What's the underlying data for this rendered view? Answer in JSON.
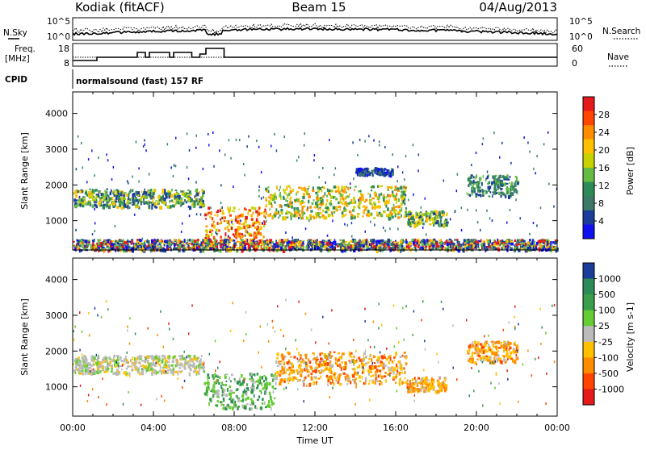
{
  "header": {
    "station": "Kodiak (fitACF)",
    "beam": "Beam 15",
    "date": "04/Aug/2013"
  },
  "nsky_panel": {
    "left_label": "N.Sky",
    "right_label": "N.Search",
    "left_ticks": [
      "10^5",
      "10^0"
    ],
    "right_ticks": [
      "10^5",
      "10^0"
    ]
  },
  "freq_panel": {
    "left_label_1": "Freq.",
    "left_label_2": "[MHz]",
    "left_ticks": [
      "18",
      "8"
    ],
    "right_label": "Nave",
    "right_ticks": [
      "60",
      "0"
    ]
  },
  "cpid_panel": {
    "label": "CPID",
    "text": "normalsound (fast) 157 RF"
  },
  "time_axis": {
    "xlabel": "Time UT",
    "ticks": [
      "00:00",
      "04:00",
      "08:00",
      "12:00",
      "16:00",
      "20:00",
      "00:00"
    ]
  },
  "power_colorbar": {
    "label": "Power [dB]",
    "ticks": [
      "28",
      "24",
      "20",
      "16",
      "12",
      "8",
      "4"
    ],
    "colors": [
      "#e41a1c",
      "#ff4500",
      "#ff8c00",
      "#ffc000",
      "#c8d200",
      "#66bb44",
      "#2e8b57",
      "#3a7a66",
      "#1a3d99",
      "#1010ee"
    ]
  },
  "velocity_colorbar": {
    "label": "Velocity [m s-1]",
    "ticks": [
      "1000",
      "500",
      "100",
      "25",
      "-25",
      "-100",
      "-500",
      "-1000"
    ],
    "colors": [
      "#1a3d99",
      "#2e8b57",
      "#3a9e4a",
      "#66cc33",
      "#bbbbbb",
      "#ffc000",
      "#ff8c00",
      "#ff4500",
      "#e41a1c"
    ]
  },
  "chart_data": [
    {
      "type": "heatmap",
      "title": "",
      "xlabel": "Time UT",
      "ylabel": "Slant Range [km]",
      "xlim": [
        0,
        24
      ],
      "ylim": [
        180,
        4600
      ],
      "yticks": [
        "1000",
        "2000",
        "3000",
        "4000"
      ],
      "colorbar": "Power [dB]",
      "scatter_regions": [
        {
          "t_start": 0.0,
          "t_end": 6.5,
          "range_km": [
            1400,
            1900
          ],
          "level": "mid"
        },
        {
          "t_start": 6.5,
          "t_end": 9.5,
          "range_km": [
            300,
            1400
          ],
          "level": "high"
        },
        {
          "t_start": 9.5,
          "t_end": 16.5,
          "range_km": [
            1100,
            2000
          ],
          "level": "mid-high"
        },
        {
          "t_start": 14.0,
          "t_end": 15.8,
          "range_km": [
            2300,
            2500
          ],
          "level": "low"
        },
        {
          "t_start": 16.5,
          "t_end": 18.5,
          "range_km": [
            900,
            1300
          ],
          "level": "mid"
        },
        {
          "t_start": 19.5,
          "t_end": 22.0,
          "range_km": [
            1700,
            2300
          ],
          "level": "low-mid"
        },
        {
          "t_start": 0.0,
          "t_end": 24.0,
          "range_km": [
            200,
            500
          ],
          "level": "mixed"
        }
      ]
    },
    {
      "type": "heatmap",
      "title": "",
      "xlabel": "Time UT",
      "ylabel": "Slant Range [km]",
      "xlim": [
        0,
        24
      ],
      "ylim": [
        180,
        4600
      ],
      "yticks": [
        "1000",
        "2000",
        "3000",
        "4000"
      ],
      "colorbar": "Velocity [m s-1]",
      "scatter_regions": [
        {
          "t_start": 0.0,
          "t_end": 6.5,
          "range_km": [
            1400,
            1900
          ],
          "velocity": "near zero"
        },
        {
          "t_start": 6.5,
          "t_end": 10.0,
          "range_km": [
            400,
            1400
          ],
          "velocity": "positive"
        },
        {
          "t_start": 10.0,
          "t_end": 16.5,
          "range_km": [
            1100,
            2000
          ],
          "velocity": "negative"
        },
        {
          "t_start": 16.5,
          "t_end": 18.5,
          "range_km": [
            900,
            1300
          ],
          "velocity": "negative"
        },
        {
          "t_start": 19.5,
          "t_end": 22.0,
          "range_km": [
            1700,
            2300
          ],
          "velocity": "negative"
        }
      ]
    }
  ]
}
